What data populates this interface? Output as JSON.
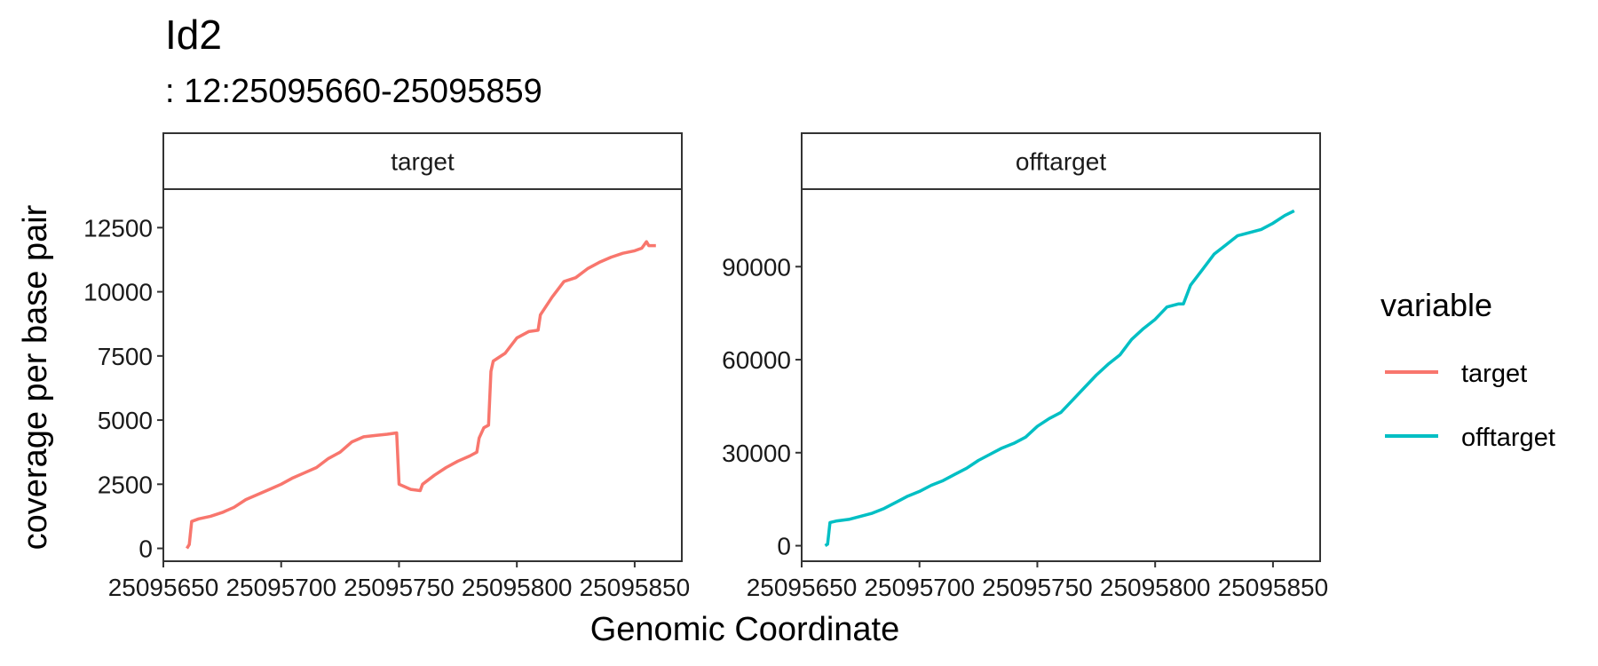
{
  "header": {
    "title": "Id2",
    "subtitle": ": 12:25095660-25095859"
  },
  "chart_data": {
    "type": "line",
    "xlabel": "Genomic Coordinate",
    "ylabel": "coverage per base pair",
    "legend": {
      "title": "variable",
      "position": "right",
      "entries": [
        "target",
        "offtarget"
      ]
    },
    "colors": {
      "target": "#F8766D",
      "offtarget": "#00BFC4"
    },
    "grid": false,
    "facets": [
      {
        "label": "target",
        "series": "target",
        "xlim": [
          25095650,
          25095870
        ],
        "ylim": [
          -500,
          14000
        ],
        "xticks": [
          25095650,
          25095700,
          25095750,
          25095800,
          25095850
        ],
        "xtick_labels": [
          "25095650",
          "25095700",
          "25095750",
          "25095800",
          "25095850"
        ],
        "yticks": [
          0,
          2500,
          5000,
          7500,
          10000,
          12500
        ],
        "ytick_labels": [
          "0",
          "2500",
          "5000",
          "7500",
          "10000",
          "12500"
        ],
        "x": [
          25095660,
          25095661,
          25095662,
          25095665,
          25095670,
          25095675,
          25095680,
          25095685,
          25095690,
          25095695,
          25095700,
          25095705,
          25095710,
          25095715,
          25095720,
          25095725,
          25095730,
          25095735,
          25095740,
          25095745,
          25095749,
          25095750,
          25095755,
          25095759,
          25095760,
          25095765,
          25095770,
          25095775,
          25095780,
          25095783,
          25095784,
          25095786,
          25095788,
          25095789,
          25095790,
          25095795,
          25095800,
          25095805,
          25095809,
          25095810,
          25095815,
          25095820,
          25095825,
          25095830,
          25095835,
          25095840,
          25095845,
          25095850,
          25095853,
          25095855,
          25095856,
          25095859
        ],
        "y": [
          0,
          150,
          1050,
          1150,
          1250,
          1400,
          1600,
          1900,
          2100,
          2300,
          2500,
          2750,
          2950,
          3150,
          3500,
          3750,
          4150,
          4350,
          4400,
          4450,
          4500,
          2500,
          2300,
          2250,
          2500,
          2850,
          3150,
          3400,
          3600,
          3750,
          4300,
          4700,
          4800,
          6900,
          7300,
          7600,
          8200,
          8450,
          8500,
          9100,
          9800,
          10400,
          10550,
          10900,
          11150,
          11350,
          11500,
          11600,
          11700,
          11950,
          11800,
          11800
        ]
      },
      {
        "label": "offtarget",
        "series": "offtarget",
        "xlim": [
          25095650,
          25095870
        ],
        "ylim": [
          -5000,
          115000
        ],
        "xticks": [
          25095650,
          25095700,
          25095750,
          25095800,
          25095850
        ],
        "xtick_labels": [
          "25095650",
          "25095700",
          "25095750",
          "25095800",
          "25095850"
        ],
        "yticks": [
          0,
          30000,
          60000,
          90000
        ],
        "ytick_labels": [
          "0",
          "30000",
          "60000",
          "90000"
        ],
        "x": [
          25095660,
          25095661,
          25095662,
          25095665,
          25095670,
          25095675,
          25095680,
          25095685,
          25095690,
          25095695,
          25095700,
          25095705,
          25095710,
          25095715,
          25095720,
          25095725,
          25095730,
          25095735,
          25095740,
          25095745,
          25095750,
          25095755,
          25095760,
          25095765,
          25095770,
          25095775,
          25095780,
          25095785,
          25095790,
          25095795,
          25095800,
          25095805,
          25095810,
          25095812,
          25095815,
          25095820,
          25095825,
          25095830,
          25095835,
          25095840,
          25095845,
          25095850,
          25095855,
          25095859
        ],
        "y": [
          0,
          500,
          7500,
          8000,
          8500,
          9500,
          10500,
          12000,
          14000,
          16000,
          17500,
          19500,
          21000,
          23000,
          25000,
          27500,
          29500,
          31500,
          33000,
          35000,
          38500,
          41000,
          43000,
          47000,
          51000,
          55000,
          58500,
          61500,
          66500,
          70000,
          73000,
          77000,
          78000,
          78000,
          84000,
          89000,
          94000,
          97000,
          100000,
          101000,
          102000,
          104000,
          106500,
          108000
        ]
      }
    ]
  }
}
